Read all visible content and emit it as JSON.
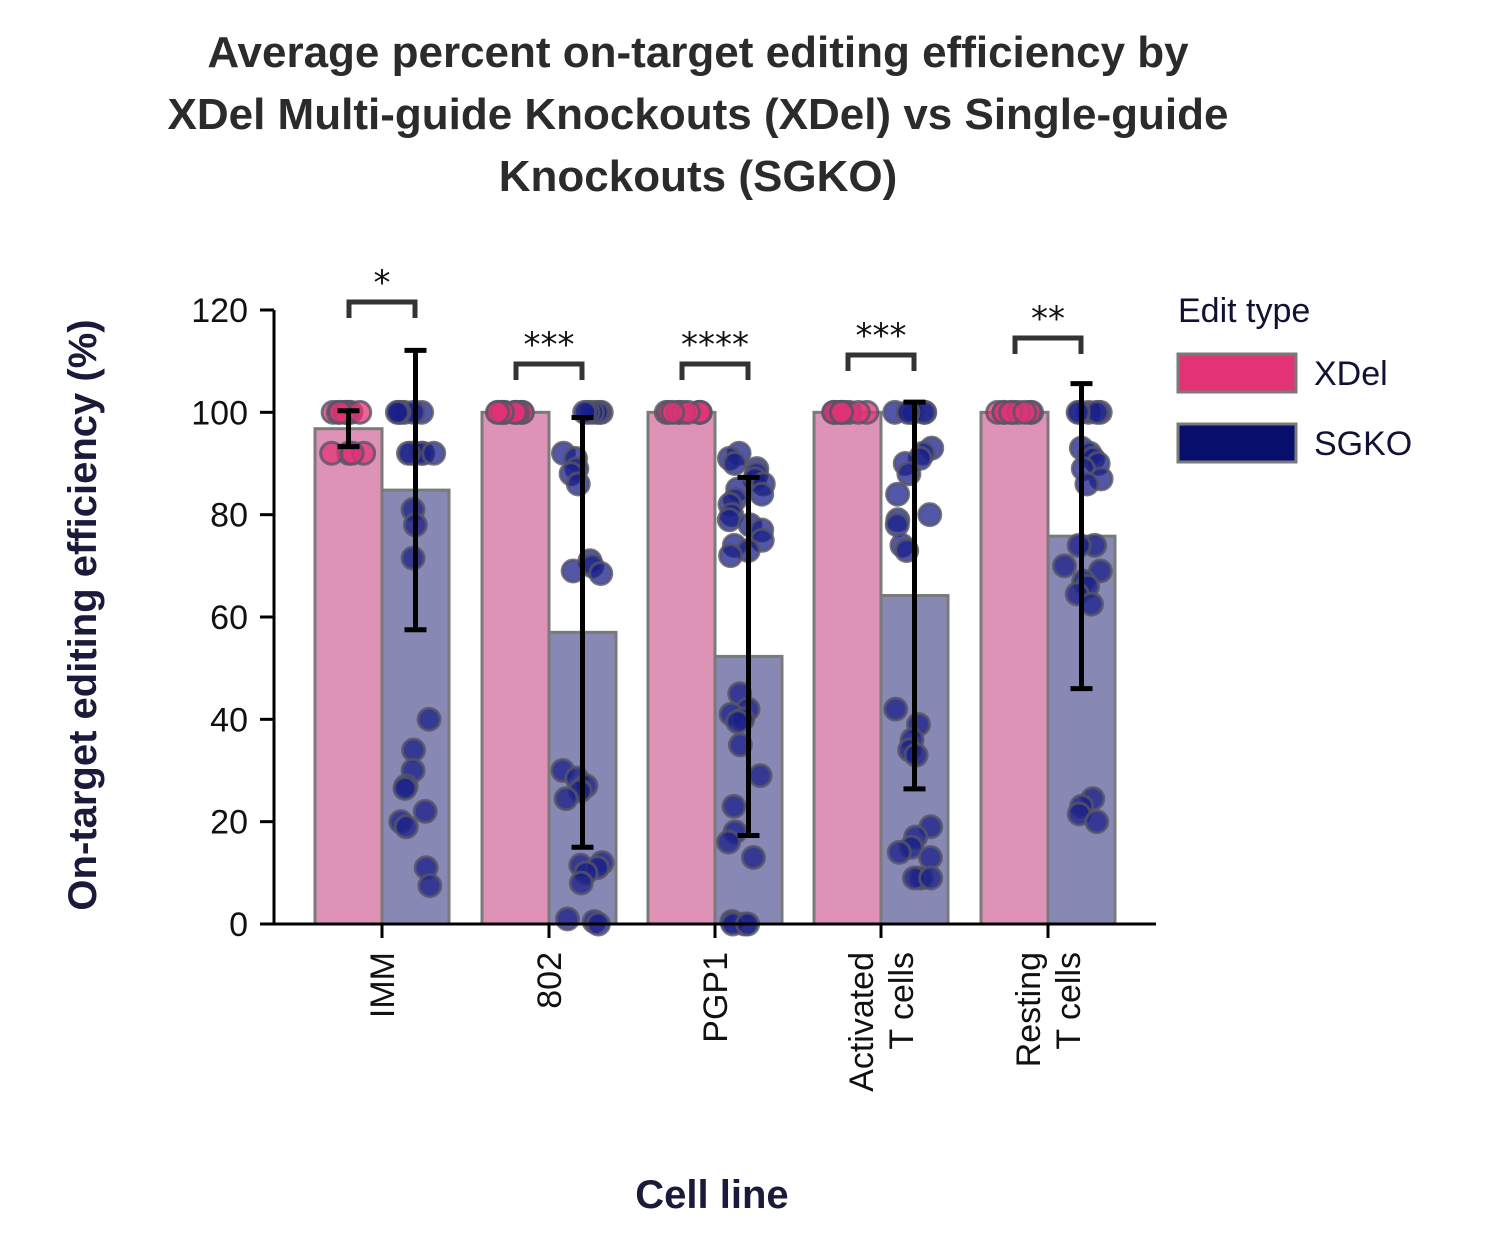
{
  "chart_data": {
    "type": "bar",
    "title": [
      "Average percent on-target editing efficiency by",
      "XDel Multi-guide Knockouts (XDel) vs Single-guide",
      "Knockouts (SGKO)"
    ],
    "xlabel": "Cell line",
    "ylabel": "On-target editing efficiency (%)",
    "ylim": [
      0,
      120
    ],
    "yticks": [
      0,
      20,
      40,
      60,
      80,
      100,
      120
    ],
    "categories": [
      {
        "lines": [
          "IMM"
        ]
      },
      {
        "lines": [
          "802"
        ]
      },
      {
        "lines": [
          "PGP1"
        ]
      },
      {
        "lines": [
          "Activated",
          "T cells"
        ]
      },
      {
        "lines": [
          "Resting",
          "T cells"
        ]
      }
    ],
    "legend": {
      "title": "Edit type",
      "position": "right"
    },
    "series": [
      {
        "name": "XDel",
        "legend_color": "#e23375",
        "bar_color": "#de92b6",
        "point_color": "#e23375",
        "values": [
          96.8,
          100,
          100,
          100,
          100
        ],
        "error": [
          3.5,
          null,
          null,
          null,
          null
        ],
        "points": [
          [
            100,
            100,
            100,
            100,
            100,
            92,
            92,
            92,
            92,
            100,
            100,
            100
          ],
          [
            100,
            100,
            100,
            100,
            100,
            100,
            100,
            100,
            100,
            100
          ],
          [
            100,
            100,
            100,
            100,
            100,
            100,
            100,
            100,
            100,
            100
          ],
          [
            100,
            100,
            100,
            100,
            100,
            100,
            100,
            100,
            100,
            100
          ],
          [
            100,
            100,
            100,
            100,
            100,
            100,
            100,
            100,
            100
          ]
        ]
      },
      {
        "name": "SGKO",
        "legend_color": "#070e6b",
        "bar_color": "#8888b4",
        "point_color": "#1a1f8a",
        "values": [
          84.8,
          57,
          52.3,
          64.2,
          75.8
        ],
        "error": [
          27.3,
          42,
          35,
          37.8,
          29.8
        ],
        "points": [
          [
            100,
            100,
            100,
            100,
            100,
            100,
            92,
            92,
            92,
            92,
            92,
            81,
            78,
            71.5,
            40,
            34,
            30,
            27,
            26.5,
            22,
            20,
            19,
            11,
            7.5
          ],
          [
            100,
            100,
            100,
            100,
            100,
            100,
            92,
            91,
            89,
            88,
            86,
            71,
            70,
            69,
            68.5,
            30,
            28.5,
            27,
            26,
            24.5,
            12,
            11.5,
            11,
            10,
            8,
            1,
            0.5,
            0
          ],
          [
            92,
            91,
            90,
            89,
            88,
            87,
            86,
            85,
            84,
            83,
            82,
            80,
            79,
            78,
            77,
            75,
            74,
            73,
            72,
            45,
            42,
            41,
            40,
            39.5,
            35,
            29,
            23,
            18,
            16,
            13,
            0.5,
            0,
            0,
            0
          ],
          [
            100,
            100,
            100,
            100,
            100,
            100,
            93,
            92,
            91,
            90,
            88,
            84,
            80,
            79,
            78,
            74,
            73,
            42,
            39,
            36,
            34,
            33,
            19,
            17,
            15,
            14,
            13,
            9,
            9,
            9
          ],
          [
            100,
            100,
            100,
            100,
            100,
            93,
            92,
            91,
            90,
            89,
            87,
            86,
            74,
            74,
            70,
            69,
            67,
            66,
            64.5,
            62.5,
            24.5,
            23,
            21.5,
            20
          ]
        ]
      }
    ],
    "significance": [
      "*",
      "***",
      "****",
      "***",
      "**"
    ]
  }
}
